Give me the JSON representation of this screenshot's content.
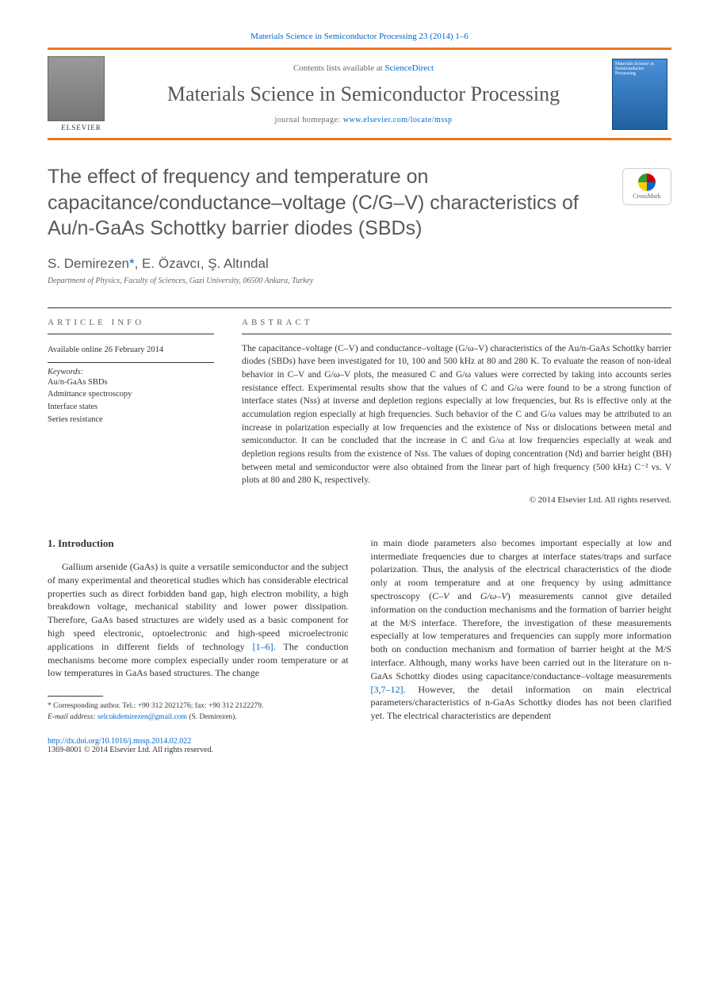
{
  "header": {
    "citation": "Materials Science in Semiconductor Processing 23 (2014) 1–6",
    "contents_prefix": "Contents lists available at ",
    "contents_link": "ScienceDirect",
    "journal": "Materials Science in Semiconductor Processing",
    "homepage_prefix": "journal homepage: ",
    "homepage_url": "www.elsevier.com/locate/mssp",
    "publisher": "ELSEVIER",
    "cover_text": "Materials Science in Semiconductor Processing"
  },
  "article": {
    "title": "The effect of frequency and temperature on capacitance/conductance–voltage (C/G–V) characteristics of Au/n-GaAs Schottky barrier diodes (SBDs)",
    "authors": "S. Demirezen*, E. Özavcı, Ş. Altındal",
    "affiliation": "Department of Physics, Faculty of Sciences, Gazi University, 06500 Ankara, Turkey",
    "crossmark": "CrossMark"
  },
  "info": {
    "label": "ARTICLE INFO",
    "available": "Available online 26 February 2014",
    "keywords_label": "Keywords:",
    "keywords": [
      "Au/n-GaAs SBDs",
      "Admittance spectroscopy",
      "Interface states",
      "Series resistance"
    ]
  },
  "abstract": {
    "label": "ABSTRACT",
    "text": "The capacitance–voltage (C–V) and conductance–voltage (G/ω–V) characteristics of the Au/n-GaAs Schottky barrier diodes (SBDs) have been investigated for 10, 100 and 500 kHz at 80 and 280 K. To evaluate the reason of non-ideal behavior in C–V and G/ω–V plots, the measured C and G/ω values were corrected by taking into accounts series resistance effect. Experimental results show that the values of C and G/ω were found to be a strong function of interface states (Nss) at inverse and depletion regions especially at low frequencies, but Rs is effective only at the accumulation region especially at high frequencies. Such behavior of the C and G/ω values may be attributed to an increase in polarization especially at low frequencies and the existence of Nss or dislocations between metal and semiconductor. It can be concluded that the increase in C and G/ω at low frequencies especially at weak and depletion regions results from the existence of Nss. The values of doping concentration (Nd) and barrier height (BH) between metal and semiconductor were also obtained from the linear part of high frequency (500 kHz) C⁻² vs. V plots at 80 and 280 K, respectively.",
    "copyright": "© 2014 Elsevier Ltd. All rights reserved."
  },
  "body": {
    "section_number": "1.",
    "section_title": "Introduction",
    "col1": "Gallium arsenide (GaAs) is quite a versatile semiconductor and the subject of many experimental and theoretical studies which has considerable electrical properties such as direct forbidden band gap, high electron mobility, a high breakdown voltage, mechanical stability and lower power dissipation. Therefore, GaAs based structures are widely used as a basic component for high speed electronic, optoelectronic and high-speed microelectronic applications in different fields of technology [1–6]. The conduction mechanisms become more complex especially under room temperature or at low temperatures in GaAs based structures. The change",
    "refs1": "[1–6]",
    "col2": "in main diode parameters also becomes important especially at low and intermediate frequencies due to charges at interface states/traps and surface polarization. Thus, the analysis of the electrical characteristics of the diode only at room temperature and at one frequency by using admittance spectroscopy (C–V and G/ω–V) measurements cannot give detailed information on the conduction mechanisms and the formation of barrier height at the M/S interface. Therefore, the investigation of these measurements especially at low temperatures and frequencies can supply more information both on conduction mechanism and formation of barrier height at the M/S interface. Although, many works have been carried out in the literature on n-GaAs Schottky diodes using capacitance/conductance–voltage measurements [3,7–12]. However, the detail information on main electrical parameters/characteristics of n-GaAs Schottky diodes has not been clarified yet. The electrical characteristics are dependent",
    "refs2": "[3,7–12]"
  },
  "footnote": {
    "corr": "* Corresponding author. Tel.: +90 312 2021276; fax: +90 312 2122279.",
    "email_label": "E-mail address: ",
    "email": "selcukdemirezen@gmail.com",
    "email_name": " (S. Demirezen)."
  },
  "footer": {
    "doi": "http://dx.doi.org/10.1016/j.mssp.2014.02.022",
    "issn": "1369-8001 © 2014 Elsevier Ltd. All rights reserved."
  },
  "colors": {
    "orange": "#e87722",
    "link": "#0066cc",
    "greytext": "#585858"
  }
}
